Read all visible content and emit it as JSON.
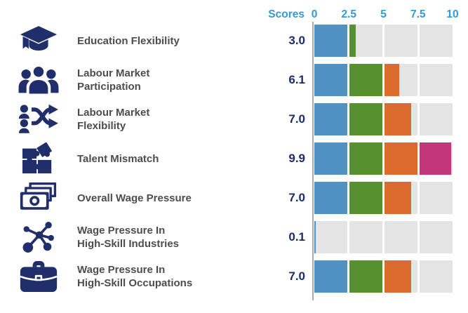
{
  "header": {
    "scores_label": "Scores"
  },
  "colors": {
    "icon_navy": "#202E6B",
    "score_navy": "#1B2B66",
    "label_grey": "#4D4D4F",
    "header_blue": "#2E9AD6",
    "axis_line_grey": "#ABABAB",
    "bar_blue": "#4E91C2",
    "bar_green": "#57902F",
    "bar_orange": "#DC6C2E",
    "bar_magenta": "#C23779",
    "bar_empty_grey": "#E4E4E4"
  },
  "chart_data": {
    "type": "bar",
    "title": "Scores",
    "xlabel": "",
    "ylabel": "",
    "xlim": [
      0,
      10
    ],
    "x_ticks": [
      "0",
      "2.5",
      "5",
      "7.5",
      "10"
    ],
    "segment_size": 2.5,
    "segment_colors": [
      "#4E91C2",
      "#57902F",
      "#DC6C2E",
      "#C23779"
    ],
    "empty_color": "#E4E4E4",
    "legend": "none",
    "grid": "off",
    "rows": [
      {
        "icon": "graduation-cap-icon",
        "label_lines": [
          "Education Flexibility"
        ],
        "score": "3.0",
        "value": 3.0
      },
      {
        "icon": "people-group-icon",
        "label_lines": [
          "Labour Market",
          "Participation"
        ],
        "score": "6.1",
        "value": 6.1
      },
      {
        "icon": "person-shuffle-icon",
        "label_lines": [
          "Labour Market",
          "Flexibility"
        ],
        "score": "7.0",
        "value": 7.0
      },
      {
        "icon": "puzzle-pieces-icon",
        "label_lines": [
          "Talent Mismatch"
        ],
        "score": "9.9",
        "value": 9.9
      },
      {
        "icon": "banknotes-icon",
        "label_lines": [
          "Overall Wage Pressure"
        ],
        "score": "7.0",
        "value": 7.0
      },
      {
        "icon": "network-icon",
        "label_lines": [
          "Wage Pressure In",
          "High-Skill Industries"
        ],
        "score": "0.1",
        "value": 0.1
      },
      {
        "icon": "briefcase-icon",
        "label_lines": [
          "Wage Pressure In",
          "High-Skill Occupations"
        ],
        "score": "7.0",
        "value": 7.0
      }
    ]
  }
}
